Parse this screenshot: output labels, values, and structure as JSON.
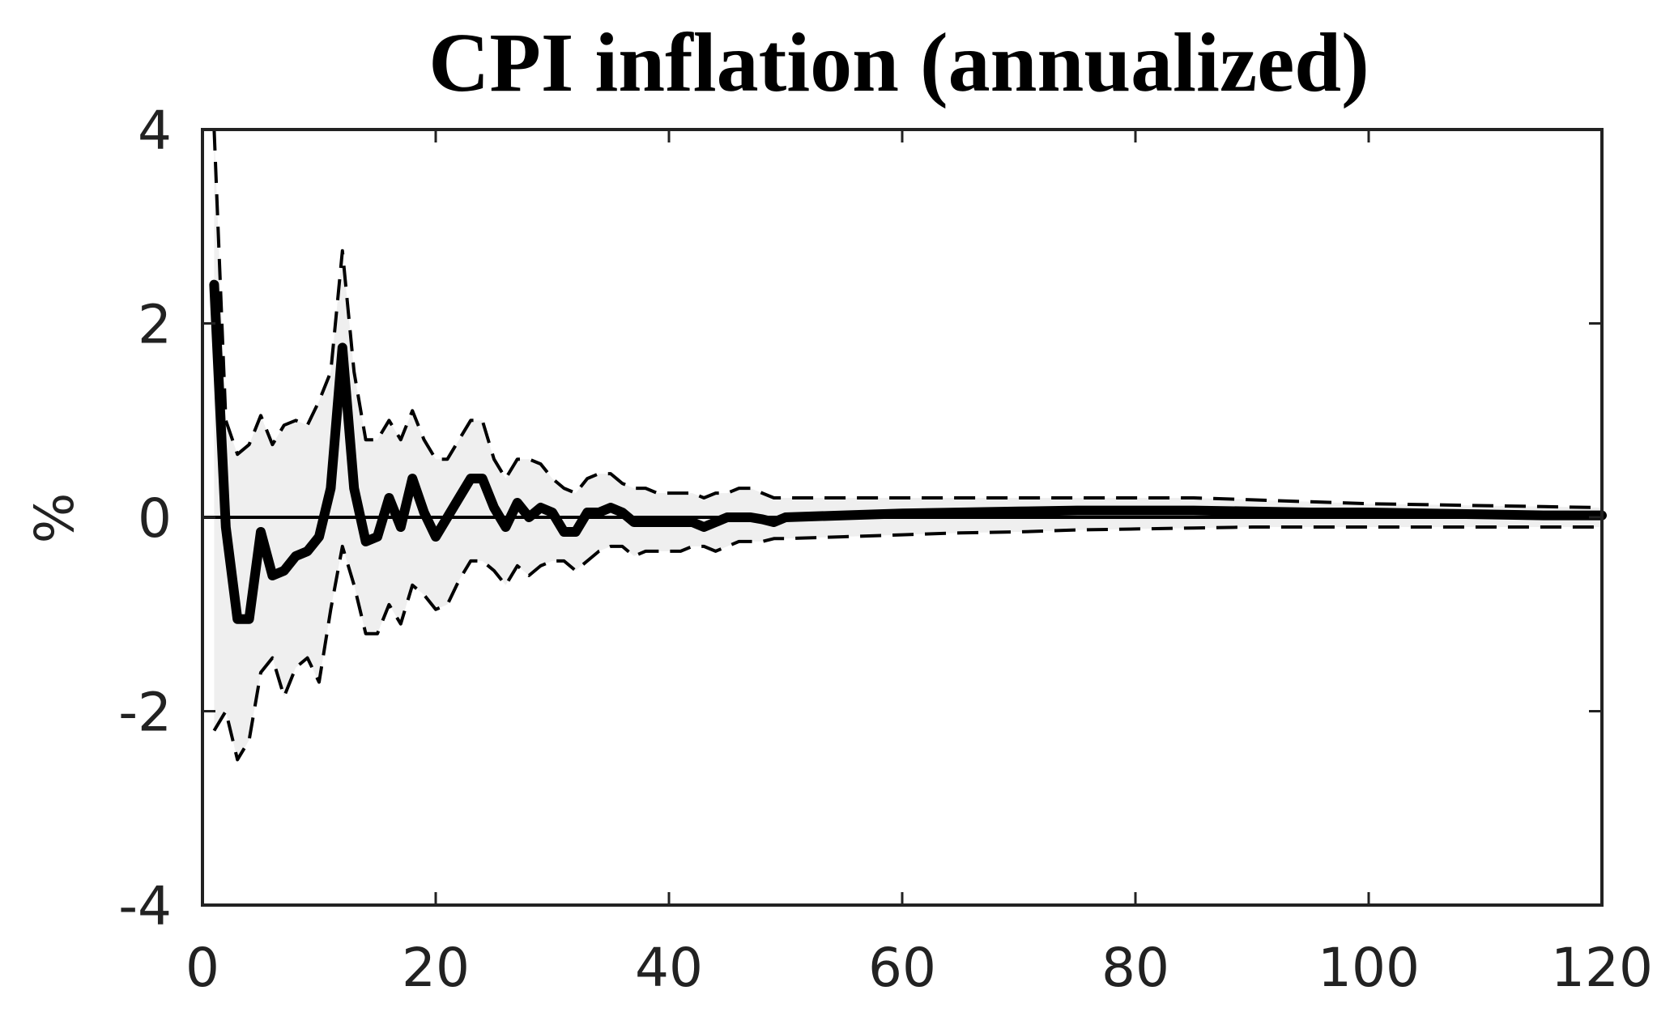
{
  "chart_data": {
    "type": "line",
    "title": "CPI inflation (annualized)",
    "xlabel": "",
    "ylabel": "%",
    "xlim": [
      0,
      120
    ],
    "ylim": [
      -4,
      4
    ],
    "xticks": [
      0,
      20,
      40,
      60,
      80,
      100,
      120
    ],
    "yticks": [
      -4,
      -2,
      0,
      2,
      4
    ],
    "grid": false,
    "legend": "none",
    "band_color": "#efefef",
    "line_color": "#000000",
    "zero_line": 0,
    "series": [
      {
        "role": "median",
        "style": "solid-thick",
        "x": [
          1,
          2,
          3,
          4,
          5,
          6,
          7,
          8,
          9,
          10,
          11,
          12,
          13,
          14,
          15,
          16,
          17,
          18,
          19,
          20,
          21,
          22,
          23,
          24,
          25,
          26,
          27,
          28,
          29,
          30,
          31,
          32,
          33,
          34,
          35,
          36,
          37,
          38,
          39,
          40,
          41,
          42,
          43,
          44,
          45,
          46,
          47,
          48,
          49,
          50,
          55,
          60,
          65,
          70,
          75,
          80,
          85,
          90,
          95,
          100,
          105,
          110,
          115,
          120
        ],
        "values": [
          2.4,
          -0.1,
          -1.05,
          -1.05,
          -0.15,
          -0.6,
          -0.55,
          -0.4,
          -0.35,
          -0.2,
          0.3,
          1.75,
          0.3,
          -0.25,
          -0.2,
          0.2,
          -0.1,
          0.4,
          0.05,
          -0.2,
          0.0,
          0.2,
          0.4,
          0.4,
          0.1,
          -0.1,
          0.15,
          0.0,
          0.1,
          0.05,
          -0.15,
          -0.15,
          0.05,
          0.05,
          0.1,
          0.05,
          -0.05,
          -0.05,
          -0.05,
          -0.05,
          -0.05,
          -0.05,
          -0.1,
          -0.05,
          0.0,
          0.0,
          0.0,
          -0.02,
          -0.05,
          0.0,
          0.02,
          0.04,
          0.05,
          0.06,
          0.07,
          0.07,
          0.07,
          0.06,
          0.05,
          0.05,
          0.04,
          0.03,
          0.02,
          0.02
        ]
      },
      {
        "role": "upper-band",
        "style": "dashed",
        "x": [
          1,
          2,
          3,
          4,
          5,
          6,
          7,
          8,
          9,
          10,
          11,
          12,
          13,
          14,
          15,
          16,
          17,
          18,
          19,
          20,
          21,
          22,
          23,
          24,
          25,
          26,
          27,
          28,
          29,
          30,
          31,
          32,
          33,
          34,
          35,
          36,
          37,
          38,
          39,
          40,
          41,
          42,
          43,
          44,
          45,
          46,
          47,
          48,
          49,
          50,
          55,
          60,
          65,
          70,
          75,
          80,
          85,
          90,
          95,
          100,
          105,
          110,
          115,
          120
        ],
        "values": [
          4.0,
          1.0,
          0.65,
          0.75,
          1.05,
          0.75,
          0.95,
          1.0,
          0.95,
          1.2,
          1.5,
          2.75,
          1.5,
          0.8,
          0.8,
          1.0,
          0.8,
          1.1,
          0.8,
          0.6,
          0.6,
          0.8,
          1.0,
          1.0,
          0.6,
          0.4,
          0.6,
          0.6,
          0.55,
          0.4,
          0.3,
          0.25,
          0.4,
          0.45,
          0.45,
          0.35,
          0.3,
          0.3,
          0.25,
          0.25,
          0.25,
          0.25,
          0.2,
          0.25,
          0.25,
          0.3,
          0.3,
          0.25,
          0.2,
          0.2,
          0.2,
          0.2,
          0.2,
          0.2,
          0.2,
          0.2,
          0.2,
          0.18,
          0.16,
          0.14,
          0.13,
          0.12,
          0.11,
          0.1
        ]
      },
      {
        "role": "lower-band",
        "style": "dashed",
        "x": [
          1,
          2,
          3,
          4,
          5,
          6,
          7,
          8,
          9,
          10,
          11,
          12,
          13,
          14,
          15,
          16,
          17,
          18,
          19,
          20,
          21,
          22,
          23,
          24,
          25,
          26,
          27,
          28,
          29,
          30,
          31,
          32,
          33,
          34,
          35,
          36,
          37,
          38,
          39,
          40,
          41,
          42,
          43,
          44,
          45,
          46,
          47,
          48,
          49,
          50,
          55,
          60,
          65,
          70,
          75,
          80,
          85,
          90,
          95,
          100,
          105,
          110,
          115,
          120
        ],
        "values": [
          -2.2,
          -2.0,
          -2.5,
          -2.3,
          -1.6,
          -1.45,
          -1.85,
          -1.55,
          -1.45,
          -1.7,
          -0.95,
          -0.3,
          -0.7,
          -1.2,
          -1.2,
          -0.9,
          -1.1,
          -0.7,
          -0.8,
          -0.95,
          -0.9,
          -0.65,
          -0.45,
          -0.45,
          -0.55,
          -0.7,
          -0.5,
          -0.6,
          -0.5,
          -0.45,
          -0.45,
          -0.55,
          -0.45,
          -0.35,
          -0.3,
          -0.3,
          -0.4,
          -0.35,
          -0.35,
          -0.35,
          -0.35,
          -0.3,
          -0.3,
          -0.35,
          -0.3,
          -0.25,
          -0.25,
          -0.25,
          -0.22,
          -0.22,
          -0.2,
          -0.18,
          -0.16,
          -0.15,
          -0.13,
          -0.12,
          -0.11,
          -0.1,
          -0.1,
          -0.1,
          -0.1,
          -0.1,
          -0.1,
          -0.1
        ]
      }
    ]
  }
}
